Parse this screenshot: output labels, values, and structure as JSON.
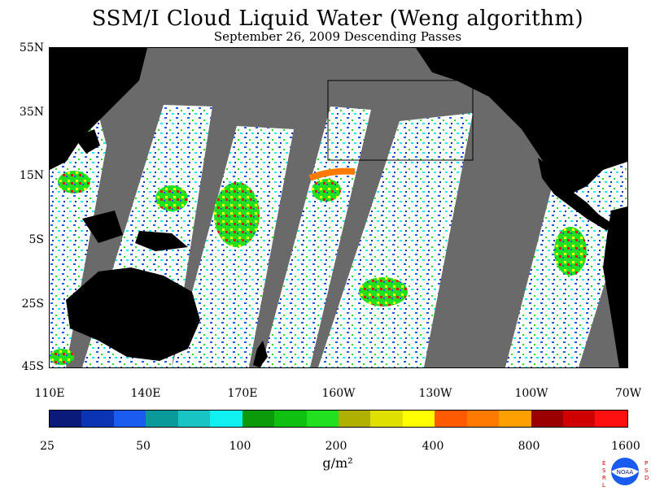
{
  "title": "SSM/I Cloud Liquid Water (Weng algorithm)",
  "subtitle": "September 26, 2009  Descending Passes",
  "lat_labels": [
    "55N",
    "35N",
    "15N",
    "5S",
    "25S",
    "45S"
  ],
  "lon_labels": [
    "110E",
    "140E",
    "170E",
    "160W",
    "130W",
    "100W",
    "70W"
  ],
  "colorbar": {
    "colors": [
      "#0a1a7a",
      "#0a34b4",
      "#1a5cf0",
      "#0a9a9a",
      "#18c4c4",
      "#10f0f0",
      "#0a9a0a",
      "#10c010",
      "#20e020",
      "#b0b000",
      "#e0e000",
      "#ffff00",
      "#ff5a00",
      "#ff7a00",
      "#ffa000",
      "#9a0000",
      "#d00000",
      "#ff1010"
    ],
    "labels": [
      "25",
      "50",
      "100",
      "200",
      "400",
      "800",
      "1600"
    ]
  },
  "units": "g/m²",
  "logo_text_left": "ESRL",
  "logo_text_right": "PSD",
  "logo_text": "NOAA"
}
